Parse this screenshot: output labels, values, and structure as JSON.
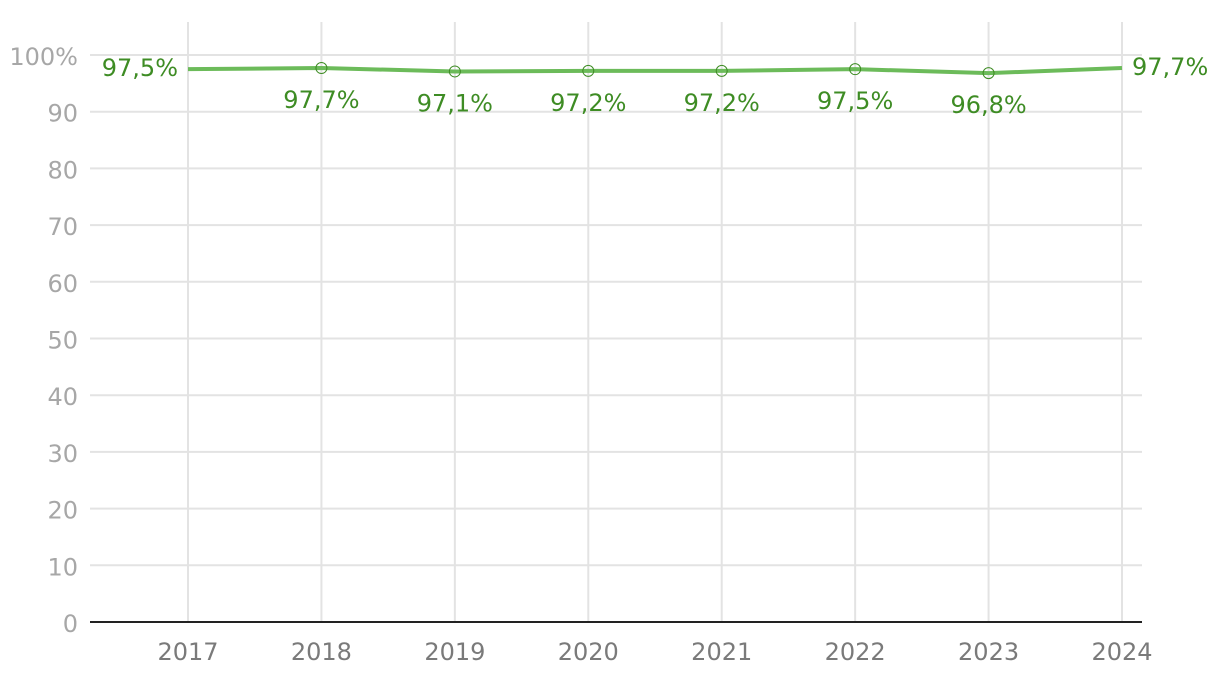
{
  "chart_data": {
    "type": "line",
    "categories": [
      "2017",
      "2018",
      "2019",
      "2020",
      "2021",
      "2022",
      "2023",
      "2024"
    ],
    "series": [
      {
        "color": "#6cbb5a",
        "values": [
          97.5,
          97.7,
          97.1,
          97.2,
          97.2,
          97.5,
          96.8,
          97.7
        ],
        "value_labels": [
          "97,5%",
          "97,7%",
          "97,1%",
          "97,2%",
          "97,2%",
          "97,5%",
          "96,8%",
          "97,7%"
        ]
      }
    ],
    "ylim": [
      0,
      100
    ],
    "yticks": [
      0,
      10,
      20,
      30,
      40,
      50,
      60,
      70,
      80,
      90,
      {
        "value": 100,
        "label": "100%"
      }
    ],
    "grid": true
  }
}
